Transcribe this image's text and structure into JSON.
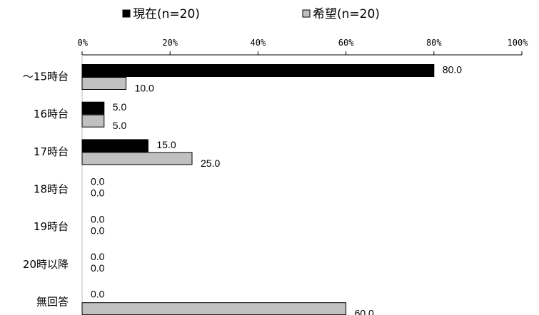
{
  "chart_data": {
    "type": "bar",
    "orientation": "horizontal",
    "categories": [
      "〜15時台",
      "16時台",
      "17時台",
      "18時台",
      "19時台",
      "20時以降",
      "無回答"
    ],
    "series": [
      {
        "name": "現在(n=20)",
        "values": [
          80.0,
          5.0,
          15.0,
          0.0,
          0.0,
          0.0,
          0.0
        ],
        "color": "#000000"
      },
      {
        "name": "希望(n=20)",
        "values": [
          10.0,
          5.0,
          25.0,
          0.0,
          0.0,
          0.0,
          60.0
        ],
        "color": "#c0c0c0"
      }
    ],
    "xlim": [
      0,
      100
    ],
    "x_ticks": [
      "0%",
      "20%",
      "40%",
      "60%",
      "80%",
      "100%"
    ],
    "x_axis_position": "top",
    "legend_position": "top",
    "grid": false,
    "value_format": "0.0"
  }
}
